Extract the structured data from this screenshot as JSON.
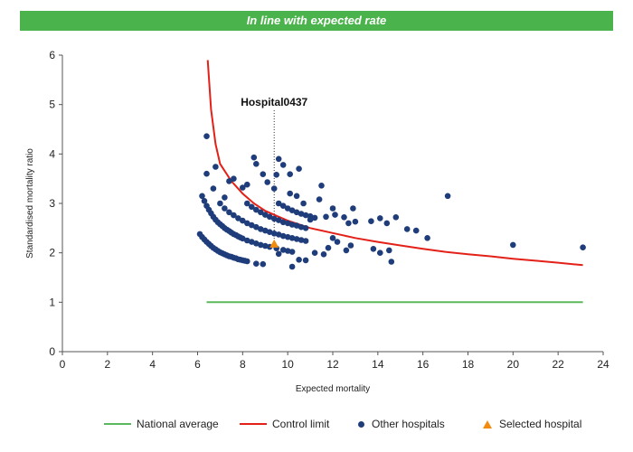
{
  "banner": {
    "text": "In line with expected rate",
    "color": "#4bb34b"
  },
  "chart_data": {
    "type": "scatter",
    "xlabel": "Expected mortality",
    "ylabel": "Standardised mortality ratio",
    "xlim": [
      0,
      24
    ],
    "ylim": [
      0,
      6
    ],
    "xticks": [
      0,
      2,
      4,
      6,
      8,
      10,
      12,
      14,
      16,
      18,
      20,
      22,
      24
    ],
    "yticks": [
      0,
      1,
      2,
      3,
      4,
      5,
      6
    ],
    "grid": false,
    "legend_position": "bottom",
    "annotation": {
      "text": "Hospital0437",
      "x": 9.4,
      "y": 2.18
    },
    "series": [
      {
        "name": "National average",
        "kind": "line",
        "color": "#5cb85c",
        "points": [
          [
            6.4,
            1.0
          ],
          [
            23.1,
            1.0
          ]
        ]
      },
      {
        "name": "Control limit",
        "kind": "line",
        "color": "#e32119",
        "points": [
          [
            6.45,
            5.9
          ],
          [
            6.6,
            4.9
          ],
          [
            6.8,
            4.2
          ],
          [
            7.0,
            3.8
          ],
          [
            7.5,
            3.45
          ],
          [
            8.0,
            3.2
          ],
          [
            8.5,
            3.0
          ],
          [
            9.0,
            2.85
          ],
          [
            9.5,
            2.75
          ],
          [
            10.0,
            2.65
          ],
          [
            11.0,
            2.5
          ],
          [
            12.0,
            2.4
          ],
          [
            13.0,
            2.3
          ],
          [
            14.0,
            2.22
          ],
          [
            15.0,
            2.15
          ],
          [
            16.0,
            2.08
          ],
          [
            17.0,
            2.02
          ],
          [
            18.0,
            1.97
          ],
          [
            19.0,
            1.93
          ],
          [
            20.0,
            1.88
          ],
          [
            21.0,
            1.84
          ],
          [
            22.0,
            1.8
          ],
          [
            23.1,
            1.75
          ]
        ]
      },
      {
        "name": "Other hospitals",
        "kind": "scatter",
        "color": "#1f3d7a",
        "points": [
          [
            6.1,
            2.38
          ],
          [
            6.2,
            2.32
          ],
          [
            6.3,
            2.27
          ],
          [
            6.4,
            2.22
          ],
          [
            6.5,
            2.18
          ],
          [
            6.6,
            2.14
          ],
          [
            6.7,
            2.1
          ],
          [
            6.8,
            2.07
          ],
          [
            6.9,
            2.04
          ],
          [
            7.0,
            2.01
          ],
          [
            7.1,
            1.99
          ],
          [
            7.2,
            1.97
          ],
          [
            7.3,
            1.95
          ],
          [
            7.4,
            1.93
          ],
          [
            7.5,
            1.92
          ],
          [
            7.6,
            1.9
          ],
          [
            7.7,
            1.89
          ],
          [
            7.8,
            1.87
          ],
          [
            7.9,
            1.86
          ],
          [
            8.0,
            1.85
          ],
          [
            8.1,
            1.84
          ],
          [
            8.2,
            1.83
          ],
          [
            8.6,
            1.78
          ],
          [
            8.9,
            1.77
          ],
          [
            6.2,
            3.15
          ],
          [
            6.3,
            3.05
          ],
          [
            6.4,
            2.95
          ],
          [
            6.5,
            2.87
          ],
          [
            6.6,
            2.8
          ],
          [
            6.7,
            2.73
          ],
          [
            6.8,
            2.67
          ],
          [
            6.9,
            2.62
          ],
          [
            7.0,
            2.58
          ],
          [
            7.1,
            2.54
          ],
          [
            7.2,
            2.5
          ],
          [
            7.3,
            2.47
          ],
          [
            7.4,
            2.44
          ],
          [
            7.5,
            2.41
          ],
          [
            7.6,
            2.38
          ],
          [
            7.7,
            2.36
          ],
          [
            7.8,
            2.33
          ],
          [
            7.9,
            2.31
          ],
          [
            8.0,
            2.29
          ],
          [
            8.2,
            2.25
          ],
          [
            8.4,
            2.22
          ],
          [
            8.6,
            2.19
          ],
          [
            8.8,
            2.16
          ],
          [
            9.0,
            2.14
          ],
          [
            9.2,
            2.12
          ],
          [
            9.5,
            2.09
          ],
          [
            9.8,
            2.06
          ],
          [
            10.0,
            2.04
          ],
          [
            10.2,
            2.02
          ],
          [
            7.0,
            3.0
          ],
          [
            7.2,
            2.9
          ],
          [
            7.4,
            2.82
          ],
          [
            7.6,
            2.76
          ],
          [
            7.8,
            2.7
          ],
          [
            8.0,
            2.65
          ],
          [
            8.2,
            2.6
          ],
          [
            8.4,
            2.56
          ],
          [
            8.6,
            2.52
          ],
          [
            8.8,
            2.48
          ],
          [
            9.0,
            2.45
          ],
          [
            9.2,
            2.42
          ],
          [
            9.4,
            2.39
          ],
          [
            9.6,
            2.37
          ],
          [
            9.8,
            2.34
          ],
          [
            10.0,
            2.32
          ],
          [
            10.2,
            2.3
          ],
          [
            10.4,
            2.28
          ],
          [
            10.6,
            2.26
          ],
          [
            10.8,
            2.24
          ],
          [
            8.2,
            3.0
          ],
          [
            8.4,
            2.93
          ],
          [
            8.6,
            2.87
          ],
          [
            8.8,
            2.82
          ],
          [
            9.0,
            2.77
          ],
          [
            9.2,
            2.73
          ],
          [
            9.4,
            2.69
          ],
          [
            9.6,
            2.66
          ],
          [
            9.8,
            2.62
          ],
          [
            10.0,
            2.6
          ],
          [
            10.2,
            2.57
          ],
          [
            10.4,
            2.55
          ],
          [
            10.6,
            2.52
          ],
          [
            10.8,
            2.5
          ],
          [
            9.6,
            3.0
          ],
          [
            9.8,
            2.95
          ],
          [
            10.0,
            2.9
          ],
          [
            10.2,
            2.86
          ],
          [
            10.4,
            2.82
          ],
          [
            10.6,
            2.79
          ],
          [
            10.8,
            2.76
          ],
          [
            11.0,
            2.74
          ],
          [
            11.2,
            2.71
          ],
          [
            10.8,
            1.85
          ],
          [
            11.2,
            2.0
          ],
          [
            11.6,
            1.97
          ],
          [
            11.8,
            2.1
          ],
          [
            12.0,
            2.3
          ],
          [
            12.2,
            2.22
          ],
          [
            12.6,
            2.05
          ],
          [
            12.8,
            2.15
          ],
          [
            13.0,
            2.63
          ],
          [
            14.1,
            2.0
          ],
          [
            14.5,
            2.05
          ],
          [
            14.6,
            1.82
          ],
          [
            13.8,
            2.08
          ],
          [
            10.2,
            1.72
          ],
          [
            10.5,
            1.86
          ],
          [
            9.6,
            1.98
          ],
          [
            6.4,
            4.36
          ],
          [
            6.4,
            3.6
          ],
          [
            6.8,
            3.74
          ],
          [
            6.7,
            3.3
          ],
          [
            7.2,
            3.12
          ],
          [
            7.4,
            3.45
          ],
          [
            7.6,
            3.5
          ],
          [
            8.0,
            3.32
          ],
          [
            8.2,
            3.38
          ],
          [
            8.5,
            3.93
          ],
          [
            8.6,
            3.8
          ],
          [
            8.9,
            3.59
          ],
          [
            9.1,
            3.43
          ],
          [
            9.4,
            3.3
          ],
          [
            9.5,
            3.58
          ],
          [
            9.6,
            3.9
          ],
          [
            9.8,
            3.78
          ],
          [
            10.1,
            3.59
          ],
          [
            10.5,
            3.7
          ],
          [
            10.1,
            3.2
          ],
          [
            10.4,
            3.15
          ],
          [
            10.7,
            3.0
          ],
          [
            11.0,
            2.67
          ],
          [
            11.4,
            3.08
          ],
          [
            11.5,
            3.36
          ],
          [
            11.7,
            2.73
          ],
          [
            12.0,
            2.9
          ],
          [
            12.1,
            2.77
          ],
          [
            12.5,
            2.72
          ],
          [
            12.7,
            2.6
          ],
          [
            12.9,
            2.9
          ],
          [
            13.7,
            2.64
          ],
          [
            14.1,
            2.7
          ],
          [
            14.4,
            2.6
          ],
          [
            14.8,
            2.72
          ],
          [
            15.3,
            2.48
          ],
          [
            15.7,
            2.45
          ],
          [
            16.2,
            2.3
          ],
          [
            17.1,
            3.15
          ],
          [
            20.0,
            2.16
          ],
          [
            23.1,
            2.11
          ]
        ]
      },
      {
        "name": "Selected hospital",
        "kind": "triangle",
        "color": "#f28c0f",
        "points": [
          [
            9.4,
            2.18
          ]
        ]
      }
    ]
  }
}
